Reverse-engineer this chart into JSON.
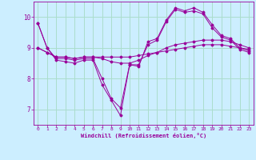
{
  "xlabel": "Windchill (Refroidissement éolien,°C)",
  "background_color": "#cceeff",
  "grid_color": "#aaddcc",
  "line_color": "#990099",
  "ylim": [
    6.5,
    10.5
  ],
  "xlim": [
    -0.5,
    23.5
  ],
  "yticks": [
    7,
    8,
    9,
    10
  ],
  "xticks": [
    0,
    1,
    2,
    3,
    4,
    5,
    6,
    7,
    8,
    9,
    10,
    11,
    12,
    13,
    14,
    15,
    16,
    17,
    18,
    19,
    20,
    21,
    22,
    23
  ],
  "series1_x": [
    0,
    1,
    2,
    3,
    4,
    5,
    6,
    7,
    8,
    9,
    10,
    11,
    12,
    13,
    14,
    15,
    16,
    17,
    18,
    19,
    20,
    21,
    22,
    23
  ],
  "series1_y": [
    9.8,
    9.0,
    8.6,
    8.55,
    8.5,
    8.6,
    8.6,
    7.8,
    7.3,
    6.8,
    8.45,
    8.4,
    9.2,
    9.3,
    9.9,
    10.3,
    10.2,
    10.3,
    10.15,
    9.75,
    9.4,
    9.3,
    9.0,
    8.9
  ],
  "series2_x": [
    0,
    1,
    2,
    3,
    4,
    5,
    6,
    7,
    8,
    9,
    10,
    11,
    12,
    13,
    14,
    15,
    16,
    17,
    18,
    19,
    20,
    21,
    22,
    23
  ],
  "series2_y": [
    9.0,
    8.85,
    8.7,
    8.7,
    8.65,
    8.7,
    8.7,
    8.7,
    8.7,
    8.7,
    8.7,
    8.75,
    8.8,
    8.85,
    8.9,
    8.95,
    9.0,
    9.05,
    9.1,
    9.1,
    9.1,
    9.05,
    9.0,
    8.95
  ],
  "series3_x": [
    0,
    1,
    2,
    3,
    4,
    5,
    6,
    7,
    8,
    9,
    10,
    11,
    12,
    13,
    14,
    15,
    16,
    17,
    18,
    19,
    20,
    21,
    22,
    23
  ],
  "series3_y": [
    9.0,
    8.85,
    8.7,
    8.7,
    8.65,
    8.7,
    8.7,
    8.65,
    8.55,
    8.5,
    8.5,
    8.6,
    8.75,
    8.85,
    9.0,
    9.1,
    9.15,
    9.2,
    9.25,
    9.25,
    9.25,
    9.2,
    9.1,
    9.0
  ],
  "series4_x": [
    0,
    1,
    2,
    3,
    4,
    5,
    6,
    7,
    8,
    9,
    10,
    11,
    12,
    13,
    14,
    15,
    16,
    17,
    18,
    19,
    20,
    21,
    22,
    23
  ],
  "series4_y": [
    9.8,
    9.0,
    8.65,
    8.65,
    8.6,
    8.65,
    8.65,
    8.0,
    7.35,
    7.05,
    8.45,
    8.45,
    9.1,
    9.25,
    9.85,
    10.25,
    10.15,
    10.2,
    10.1,
    9.65,
    9.35,
    9.25,
    8.95,
    8.85
  ]
}
